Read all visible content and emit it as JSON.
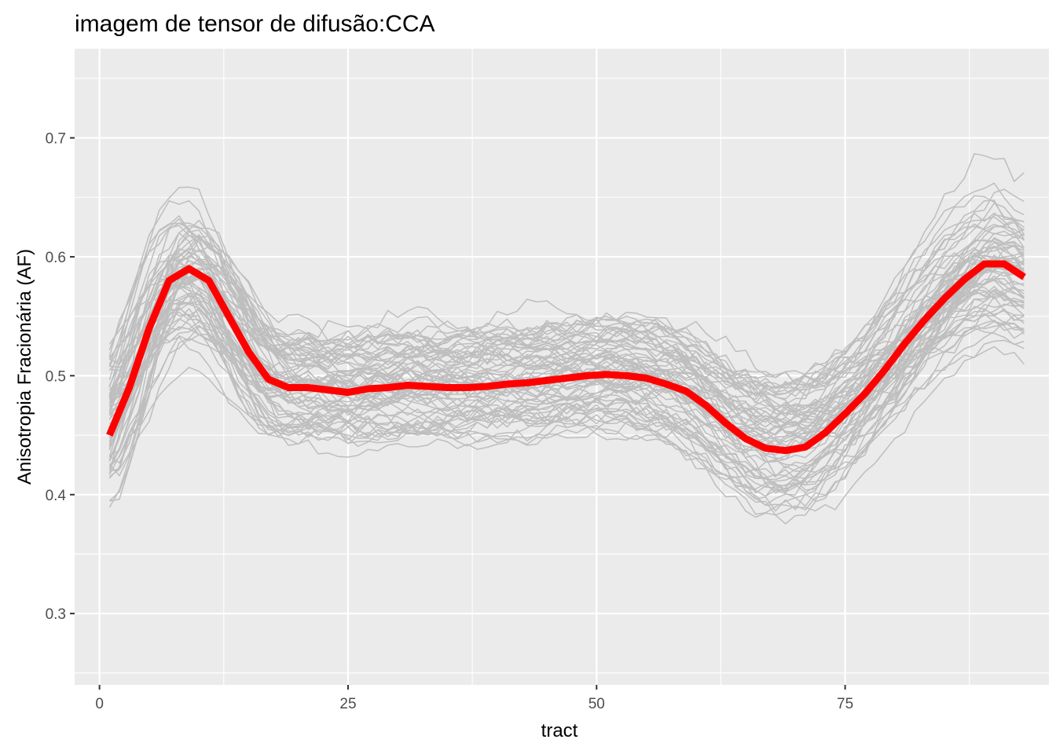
{
  "chart_data": {
    "type": "line",
    "title": "imagem de tensor de difusão:CCA",
    "xlabel": "tract",
    "ylabel": "Anisotropia Fracionária (AF)",
    "xlim": [
      -2.5,
      95.5
    ],
    "ylim": [
      0.24,
      0.775
    ],
    "x_ticks": [
      0,
      25,
      50,
      75
    ],
    "x_tick_labels": [
      "0",
      "25",
      "50",
      "75"
    ],
    "y_ticks": [
      0.3,
      0.4,
      0.5,
      0.6,
      0.7
    ],
    "y_tick_labels": [
      "0.3",
      "0.4",
      "0.5",
      "0.6",
      "0.7"
    ],
    "grid": true,
    "legend": "none",
    "colors": {
      "panel_background": "#ebebeb",
      "grid": "#ffffff",
      "individual_curves": "#bebebe",
      "mean_curve": "#ff0000"
    },
    "series": [
      {
        "x": [
          1,
          3,
          5,
          7,
          9,
          11,
          13,
          15,
          17,
          19,
          21,
          23,
          25,
          27,
          29,
          31,
          33,
          35,
          37,
          39,
          41,
          43,
          45,
          47,
          49,
          51,
          53,
          55,
          57,
          59,
          61,
          63,
          65,
          67,
          69,
          71,
          73,
          75,
          77,
          79,
          81,
          83,
          85,
          87,
          89,
          91,
          93
        ],
        "y": [
          0.45,
          0.49,
          0.54,
          0.58,
          0.59,
          0.58,
          0.55,
          0.52,
          0.497,
          0.49,
          0.49,
          0.488,
          0.486,
          0.489,
          0.49,
          0.492,
          0.491,
          0.49,
          0.49,
          0.491,
          0.493,
          0.494,
          0.496,
          0.498,
          0.5,
          0.501,
          0.5,
          0.498,
          0.493,
          0.487,
          0.475,
          0.46,
          0.447,
          0.439,
          0.437,
          0.44,
          0.452,
          0.468,
          0.485,
          0.505,
          0.527,
          0.547,
          0.565,
          0.581,
          0.594,
          0.594,
          0.583
        ]
      }
    ]
  }
}
